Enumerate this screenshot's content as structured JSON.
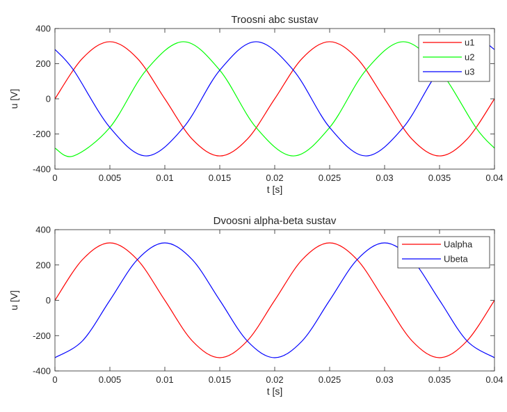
{
  "chart_data": [
    {
      "type": "line",
      "title": "Troosni abc sustav",
      "xlabel": "t [s]",
      "ylabel": "u [V]",
      "xlim": [
        0,
        0.04
      ],
      "ylim": [
        -400,
        400
      ],
      "xticks": [
        0,
        0.005,
        0.01,
        0.015,
        0.02,
        0.025,
        0.03,
        0.035,
        0.04
      ],
      "xtick_labels": [
        "0",
        "0.005",
        "0.01",
        "0.015",
        "0.02",
        "0.025",
        "0.03",
        "0.035",
        "0.04"
      ],
      "yticks": [
        -400,
        -200,
        0,
        200,
        400
      ],
      "ytick_labels": [
        "-400",
        "-200",
        "0",
        "200",
        "400"
      ],
      "grid": false,
      "legend_position": "top-right",
      "series": [
        {
          "name": "u1",
          "color": "#ff0000",
          "x": [
            0,
            0.0025,
            0.005,
            0.0075,
            0.01,
            0.0125,
            0.015,
            0.0175,
            0.02,
            0.0225,
            0.025,
            0.0275,
            0.03,
            0.0325,
            0.035,
            0.0375,
            0.04
          ],
          "y": [
            0,
            230,
            325,
            230,
            0,
            -230,
            -325,
            -230,
            0,
            230,
            325,
            230,
            0,
            -230,
            -325,
            -230,
            0
          ]
        },
        {
          "name": "u2",
          "color": "#00ff00",
          "x": [
            0,
            0.0017,
            0.005,
            0.0083,
            0.0117,
            0.015,
            0.0183,
            0.0217,
            0.025,
            0.0283,
            0.0317,
            0.035,
            0.0383,
            0.04
          ],
          "y": [
            -281,
            -325,
            -163,
            163,
            325,
            163,
            -163,
            -325,
            -163,
            163,
            325,
            163,
            -163,
            -281
          ]
        },
        {
          "name": "u3",
          "color": "#0000ff",
          "x": [
            0,
            0.0017,
            0.005,
            0.0083,
            0.0117,
            0.015,
            0.0183,
            0.0217,
            0.025,
            0.0283,
            0.0317,
            0.035,
            0.0383,
            0.04
          ],
          "y": [
            281,
            163,
            -163,
            -325,
            -163,
            163,
            325,
            163,
            -163,
            -325,
            -163,
            163,
            325,
            281
          ]
        }
      ]
    },
    {
      "type": "line",
      "title": "Dvoosni alpha-beta sustav",
      "xlabel": "t [s]",
      "ylabel": "u [V]",
      "xlim": [
        0,
        0.04
      ],
      "ylim": [
        -400,
        400
      ],
      "xticks": [
        0,
        0.005,
        0.01,
        0.015,
        0.02,
        0.025,
        0.03,
        0.035,
        0.04
      ],
      "xtick_labels": [
        "0",
        "0.005",
        "0.01",
        "0.015",
        "0.02",
        "0.025",
        "0.03",
        "0.035",
        "0.04"
      ],
      "yticks": [
        -400,
        -200,
        0,
        200,
        400
      ],
      "ytick_labels": [
        "-400",
        "-200",
        "0",
        "200",
        "400"
      ],
      "grid": false,
      "legend_position": "top-right",
      "series": [
        {
          "name": "Ualpha",
          "color": "#ff0000",
          "x": [
            0,
            0.0025,
            0.005,
            0.0075,
            0.01,
            0.0125,
            0.015,
            0.0175,
            0.02,
            0.0225,
            0.025,
            0.0275,
            0.03,
            0.0325,
            0.035,
            0.0375,
            0.04
          ],
          "y": [
            0,
            230,
            325,
            230,
            0,
            -230,
            -325,
            -230,
            0,
            230,
            325,
            230,
            0,
            -230,
            -325,
            -230,
            0
          ]
        },
        {
          "name": "Ubeta",
          "color": "#0000ff",
          "x": [
            0,
            0.0025,
            0.005,
            0.0075,
            0.01,
            0.0125,
            0.015,
            0.0175,
            0.02,
            0.0225,
            0.025,
            0.0275,
            0.03,
            0.0325,
            0.035,
            0.0375,
            0.04
          ],
          "y": [
            -325,
            -230,
            0,
            230,
            325,
            230,
            0,
            -230,
            -325,
            -230,
            0,
            230,
            325,
            230,
            0,
            -230,
            -325
          ]
        }
      ]
    }
  ]
}
